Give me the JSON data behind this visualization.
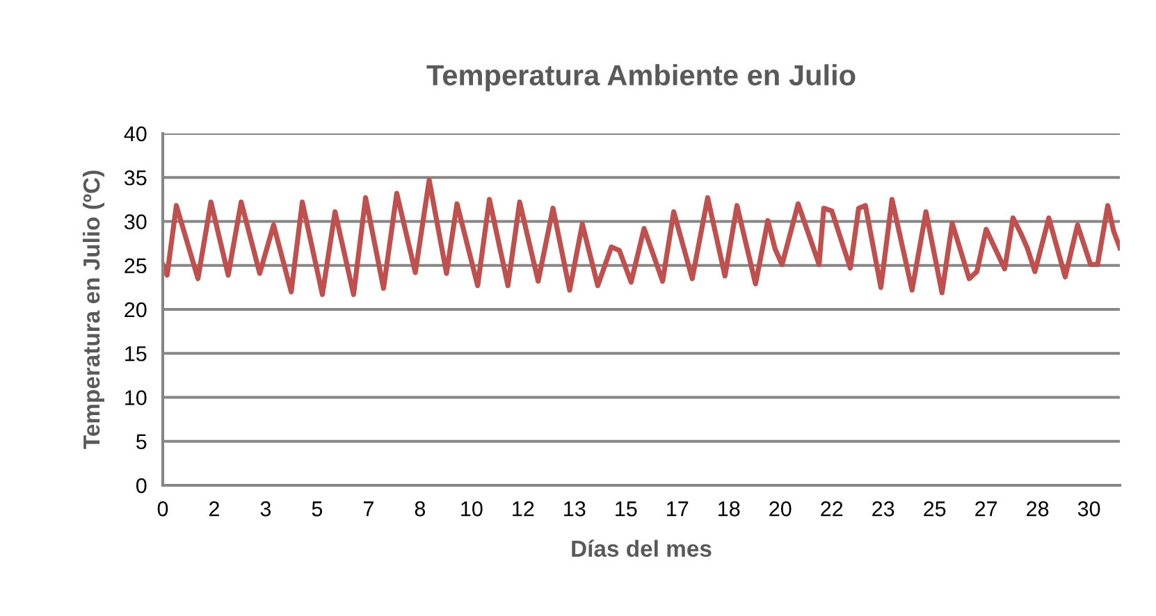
{
  "chart_data": {
    "type": "line",
    "title": "Temperatura Ambiente en Julio",
    "xlabel": "Días del mes",
    "ylabel": "Temperatura en Julio (ºC)",
    "x": [
      0,
      0.14,
      0.44,
      1.14,
      1.56,
      2.12,
      2.54,
      3.14,
      3.59,
      4.16,
      4.52,
      5.17,
      5.58,
      6.18,
      6.57,
      7.15,
      7.58,
      8.18,
      8.63,
      9.19,
      9.53,
      10.2,
      10.58,
      11.18,
      11.56,
      12.16,
      12.64,
      13.18,
      13.59,
      14.09,
      14.53,
      14.79,
      15.17,
      15.59,
      16.19,
      16.55,
      17.15,
      17.65,
      18.21,
      18.6,
      19.2,
      19.6,
      19.83,
      20.06,
      20.58,
      21.26,
      21.41,
      21.67,
      22.27,
      22.54,
      22.76,
      23.26,
      23.62,
      24.27,
      24.72,
      25.24,
      25.57,
      26.12,
      26.37,
      26.67,
      27.27,
      27.54,
      27.8,
      28.0,
      28.25,
      28.7,
      29.23,
      29.63,
      30.05,
      30.28,
      30.61,
      30.8,
      31.0
    ],
    "series": [
      {
        "color": "#c0504d",
        "values": [
          25.1,
          23.9,
          31.8,
          23.5,
          32.2,
          23.9,
          32.2,
          24.1,
          29.6,
          22.0,
          32.2,
          21.7,
          31.1,
          21.7,
          32.7,
          22.4,
          33.2,
          24.2,
          34.7,
          24.1,
          32.0,
          22.7,
          32.5,
          22.7,
          32.2,
          23.2,
          31.5,
          22.2,
          29.7,
          22.7,
          27.1,
          26.7,
          23.1,
          29.2,
          23.2,
          31.1,
          23.5,
          32.7,
          23.8,
          31.8,
          22.9,
          30.1,
          26.9,
          25.1,
          32.0,
          25.1,
          31.5,
          31.2,
          24.7,
          31.5,
          31.8,
          22.5,
          32.5,
          22.2,
          31.1,
          21.9,
          29.8,
          23.5,
          24.3,
          29.1,
          24.6,
          30.4,
          28.6,
          27.0,
          24.3,
          30.4,
          23.7,
          29.6,
          25.1,
          25.1,
          31.8,
          28.9,
          27.0
        ]
      }
    ],
    "xlim": [
      0,
      31
    ],
    "xticks": [
      0,
      {
        "value": 1.6667,
        "label": "2"
      },
      {
        "value": 3.3333,
        "label": "3"
      },
      5,
      {
        "value": 6.6667,
        "label": "7"
      },
      {
        "value": 8.3333,
        "label": "8"
      },
      10,
      {
        "value": 11.6667,
        "label": "12"
      },
      {
        "value": 13.3333,
        "label": "13"
      },
      15,
      {
        "value": 16.6667,
        "label": "17"
      },
      {
        "value": 18.3333,
        "label": "18"
      },
      20,
      {
        "value": 21.6667,
        "label": "22"
      },
      {
        "value": 23.3333,
        "label": "23"
      },
      25,
      {
        "value": 26.6667,
        "label": "27"
      },
      {
        "value": 28.3333,
        "label": "28"
      },
      30
    ],
    "ylim": [
      0,
      40
    ],
    "yticks": [
      0,
      5,
      10,
      15,
      20,
      25,
      30,
      35,
      40
    ],
    "grid": "y",
    "legend": false,
    "marker": "none",
    "line_style": "solid"
  }
}
